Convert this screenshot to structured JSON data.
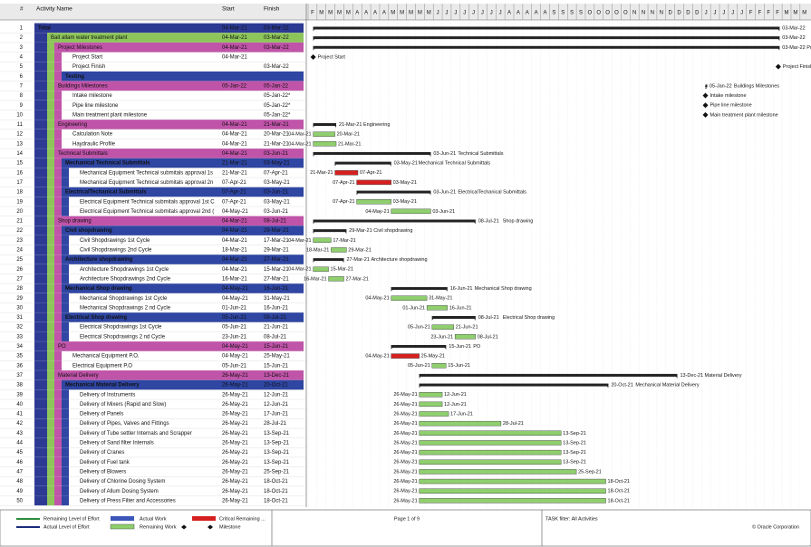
{
  "header": {
    "num": "#",
    "name": "Activity Name",
    "start": "Start",
    "finish": "Finish"
  },
  "timescale": {
    "origin": "28-Feb-21",
    "weeks": [
      "F",
      "M",
      "M",
      "M",
      "M",
      "A",
      "A",
      "A",
      "A",
      "M",
      "M",
      "M",
      "M",
      "M",
      "J",
      "J",
      "J",
      "J",
      "J",
      "J",
      "J",
      "J",
      "A",
      "A",
      "A",
      "A",
      "A",
      "S",
      "S",
      "S",
      "S",
      "O",
      "O",
      "O",
      "O",
      "O",
      "N",
      "N",
      "N",
      "N",
      "D",
      "D",
      "D",
      "D",
      "J",
      "J",
      "J",
      "J",
      "J",
      "F",
      "F",
      "F",
      "F",
      "M",
      "M",
      "M"
    ]
  },
  "rows": [
    {
      "id": 1,
      "name": "Total",
      "start": "04-Mar-21",
      "finish": "03-Mar-22",
      "style": "total"
    },
    {
      "id": 2,
      "name": "Bait allam water treatment plant",
      "start": "04-Mar-21",
      "finish": "03-Mar-22",
      "style": "project"
    },
    {
      "id": 3,
      "name": "Project Milestones",
      "start": "04-Mar-21",
      "finish": "03-Mar-22",
      "style": "wbs1"
    },
    {
      "id": 4,
      "name": "Project Start",
      "start": "04-Mar-21",
      "style": "task"
    },
    {
      "id": 5,
      "name": "Project Finish",
      "finish": "03-Mar-22",
      "style": "task"
    },
    {
      "id": 6,
      "name": "Testing",
      "style": "wbs2"
    },
    {
      "id": 7,
      "name": "Buildings Milestones",
      "start": "05-Jan-22",
      "finish": "05-Jan-22",
      "style": "wbs1"
    },
    {
      "id": 8,
      "name": "Intake milestone",
      "finish": "05-Jan-22*",
      "style": "task"
    },
    {
      "id": 9,
      "name": "Pipe line milestone",
      "finish": "05-Jan-22*",
      "style": "task"
    },
    {
      "id": 10,
      "name": "Main treatment plant milestone",
      "finish": "05-Jan-22*",
      "style": "task"
    },
    {
      "id": 11,
      "name": "Engineering",
      "start": "04-Mar-21",
      "finish": "21-Mar-21",
      "style": "wbs1"
    },
    {
      "id": 12,
      "name": "Calculation Note",
      "start": "04-Mar-21",
      "finish": "20-Mar-21",
      "style": "task"
    },
    {
      "id": 13,
      "name": "Haydraulic Profile",
      "start": "04-Mar-21",
      "finish": "21-Mar-21",
      "style": "task"
    },
    {
      "id": 14,
      "name": "Technical Submittals",
      "start": "04-Mar-21",
      "finish": "03-Jun-21",
      "style": "wbs1"
    },
    {
      "id": 15,
      "name": "Mechanical Technical Submittals",
      "start": "21-Mar-21",
      "finish": "03-May-21",
      "style": "wbs2"
    },
    {
      "id": 16,
      "name": "Mechanical Equipment Technical submitals approval 1s",
      "start": "21-Mar-21",
      "finish": "07-Apr-21",
      "style": "task",
      "critical": true
    },
    {
      "id": 17,
      "name": "Mechanical Equipment Technical submitals approval 2n",
      "start": "07-Apr-21",
      "finish": "03-May-21",
      "style": "task",
      "critical": true
    },
    {
      "id": 18,
      "name": "ElectricalTechanical Submittals",
      "start": "07-Apr-21",
      "finish": "03-Jun-21",
      "style": "wbs2"
    },
    {
      "id": 19,
      "name": "Electrical Equipment Technical submitals approval 1st C",
      "start": "07-Apr-21",
      "finish": "03-May-21",
      "style": "task"
    },
    {
      "id": 20,
      "name": "Electrical Equipment Technical submitals approval 2nd (",
      "start": "04-May-21",
      "finish": "03-Jun-21",
      "style": "task"
    },
    {
      "id": 21,
      "name": "Shop drawing",
      "start": "04-Mar-21",
      "finish": "08-Jul-21",
      "style": "wbs1"
    },
    {
      "id": 22,
      "name": "Civil shopdrawing",
      "start": "04-Mar-21",
      "finish": "29-Mar-21",
      "style": "wbs2"
    },
    {
      "id": 23,
      "name": "Civil Shopdrawings 1st Cycle",
      "start": "04-Mar-21",
      "finish": "17-Mar-21",
      "style": "task"
    },
    {
      "id": 24,
      "name": "Civil Shopdrawings 2nd Cycle",
      "start": "18-Mar-21",
      "finish": "29-Mar-21",
      "style": "task"
    },
    {
      "id": 25,
      "name": "Architecture shopdrawing",
      "start": "04-Mar-21",
      "finish": "27-Mar-21",
      "style": "wbs2"
    },
    {
      "id": 26,
      "name": "Architecture Shopdrawings 1st Cycle",
      "start": "04-Mar-21",
      "finish": "15-Mar-21",
      "style": "task"
    },
    {
      "id": 27,
      "name": "Architecture Shopdrawings 2nd Cycle",
      "start": "16-Mar-21",
      "finish": "27-Mar-21",
      "style": "task"
    },
    {
      "id": 28,
      "name": "Mechanical Shop drawing",
      "start": "04-May-21",
      "finish": "16-Jun-21",
      "style": "wbs2"
    },
    {
      "id": 29,
      "name": "Mechanical Shopdrawings 1st Cycle",
      "start": "04-May-21",
      "finish": "31-May-21",
      "style": "task"
    },
    {
      "id": 30,
      "name": "Mechanical Shopdrawings 2 nd Cycle",
      "start": "01-Jun-21",
      "finish": "16-Jun-21",
      "style": "task"
    },
    {
      "id": 31,
      "name": "Electrical Shop drawing",
      "start": "05-Jun-21",
      "finish": "08-Jul-21",
      "style": "wbs2"
    },
    {
      "id": 32,
      "name": "Electrical Shopdrawings 1st Cycle",
      "start": "05-Jun-21",
      "finish": "21-Jun-21",
      "style": "task"
    },
    {
      "id": 33,
      "name": "Electrical Shopdrawings 2 nd Cycle",
      "start": "23-Jun-21",
      "finish": "08-Jul-21",
      "style": "task"
    },
    {
      "id": 34,
      "name": "PO",
      "start": "04-May-21",
      "finish": "15-Jun-21",
      "style": "wbs1"
    },
    {
      "id": 35,
      "name": "Mechanical Equipment P.O.",
      "start": "04-May-21",
      "finish": "25-May-21",
      "style": "task",
      "critical": true
    },
    {
      "id": 36,
      "name": "Electrical Equipment P.O",
      "start": "05-Jun-21",
      "finish": "15-Jun-21",
      "style": "task"
    },
    {
      "id": 37,
      "name": "Material Delivery",
      "start": "26-May-21",
      "finish": "13-Dec-21",
      "style": "wbs1"
    },
    {
      "id": 38,
      "name": "Mechanical Material Delivery",
      "start": "26-May-21",
      "finish": "20-Oct-21",
      "style": "wbs2"
    },
    {
      "id": 39,
      "name": "Delivery of Instruments",
      "start": "26-May-21",
      "finish": "12-Jun-21",
      "style": "task"
    },
    {
      "id": 40,
      "name": "Delivery of Mixers (Rapid and Slow)",
      "start": "26-May-21",
      "finish": "12-Jun-21",
      "style": "task"
    },
    {
      "id": 41,
      "name": "Delivery of Panels",
      "start": "26-May-21",
      "finish": "17-Jun-21",
      "style": "task"
    },
    {
      "id": 42,
      "name": "Delivery of Pipes, Valves and Fittings",
      "start": "26-May-21",
      "finish": "28-Jul-21",
      "style": "task"
    },
    {
      "id": 43,
      "name": "Delivery of Tube settler Internals and Scrapper",
      "start": "26-May-21",
      "finish": "13-Sep-21",
      "style": "task"
    },
    {
      "id": 44,
      "name": "Delivery of Sand filter Internals",
      "start": "26-May-21",
      "finish": "13-Sep-21",
      "style": "task"
    },
    {
      "id": 45,
      "name": "Delivery of Cranes",
      "start": "26-May-21",
      "finish": "13-Sep-21",
      "style": "task"
    },
    {
      "id": 46,
      "name": "Delivery of Fuel tank",
      "start": "26-May-21",
      "finish": "13-Sep-21",
      "style": "task"
    },
    {
      "id": 47,
      "name": "Delivery of Blowers",
      "start": "26-May-21",
      "finish": "25-Sep-21",
      "style": "task"
    },
    {
      "id": 48,
      "name": "Delivery of Chlorine Dosing System",
      "start": "26-May-21",
      "finish": "18-Oct-21",
      "style": "task"
    },
    {
      "id": 49,
      "name": "Delivery of Allum Dosing System",
      "start": "26-May-21",
      "finish": "18-Oct-21",
      "style": "task"
    },
    {
      "id": 50,
      "name": "Delivery of Press Filter and Accessories",
      "start": "26-May-21",
      "finish": "18-Oct-21",
      "style": "task"
    }
  ],
  "legend": {
    "remaining_loe": "Remaining Level of Effort",
    "actual_loe": "Actual Level of Effort",
    "actual_work": "Actual Work",
    "remaining_work": "Remaining Work",
    "critical": "Critical Remaining ...",
    "milestone": "Milestone"
  },
  "footer": {
    "page": "Page 1 of 9",
    "filter": "TASK filter: All Activities",
    "copyright": "© Oracle Corporation"
  }
}
